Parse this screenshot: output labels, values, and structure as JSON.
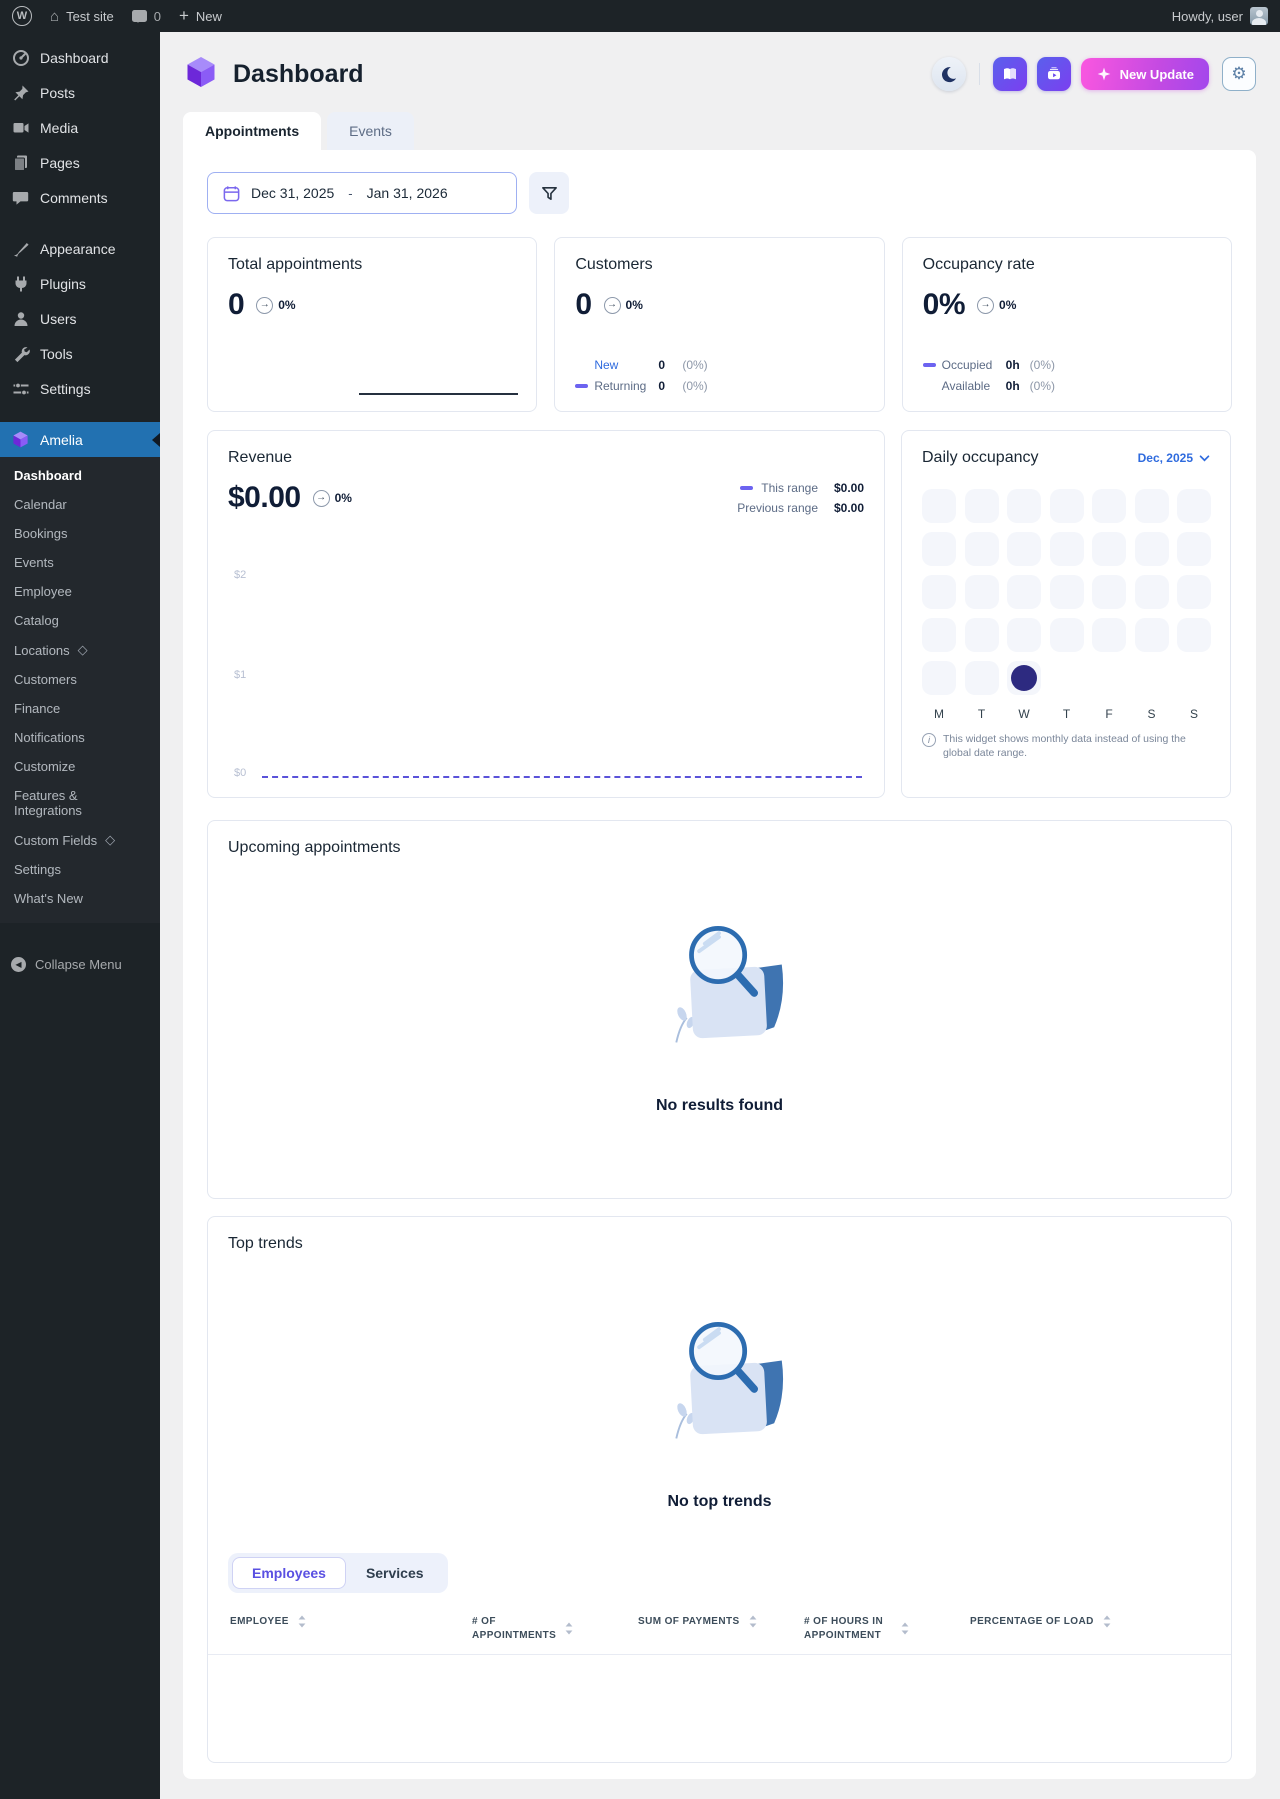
{
  "admin_bar": {
    "site_name": "Test site",
    "comment_count": "0",
    "new_label": "New",
    "howdy": "Howdy, user"
  },
  "sidebar": {
    "items": [
      {
        "label": "Dashboard",
        "icon": "dashboard-icon"
      },
      {
        "label": "Posts",
        "icon": "pushpin-icon"
      },
      {
        "label": "Media",
        "icon": "media-icon"
      },
      {
        "label": "Pages",
        "icon": "pages-icon"
      },
      {
        "label": "Comments",
        "icon": "comment-icon"
      },
      {
        "label": "Appearance",
        "icon": "appearance-icon",
        "gap_before": true
      },
      {
        "label": "Plugins",
        "icon": "plugin-icon"
      },
      {
        "label": "Users",
        "icon": "user-icon"
      },
      {
        "label": "Tools",
        "icon": "tools-icon"
      },
      {
        "label": "Settings",
        "icon": "settings-icon"
      }
    ],
    "amelia": {
      "label": "Amelia",
      "submenu": [
        {
          "label": "Dashboard",
          "active": true
        },
        {
          "label": "Calendar"
        },
        {
          "label": "Bookings"
        },
        {
          "label": "Events"
        },
        {
          "label": "Employee"
        },
        {
          "label": "Catalog"
        },
        {
          "label": "Locations",
          "pro": true
        },
        {
          "label": "Customers"
        },
        {
          "label": "Finance"
        },
        {
          "label": "Notifications"
        },
        {
          "label": "Customize"
        },
        {
          "label": "Features & Integrations"
        },
        {
          "label": "Custom Fields",
          "pro": true
        },
        {
          "label": "Settings"
        },
        {
          "label": "What's New"
        }
      ]
    },
    "collapse_label": "Collapse Menu"
  },
  "header": {
    "title": "Dashboard",
    "new_update_label": "New Update"
  },
  "tabs": [
    {
      "label": "Appointments",
      "active": true
    },
    {
      "label": "Events",
      "active": false
    }
  ],
  "filters": {
    "date_start": "Dec 31, 2025",
    "date_separator": "-",
    "date_end": "Jan 31, 2026"
  },
  "stats": {
    "total_appointments": {
      "title": "Total appointments",
      "value": "0",
      "trend": "0%"
    },
    "customers": {
      "title": "Customers",
      "value": "0",
      "trend": "0%",
      "rows": [
        {
          "label": "New",
          "value": "0",
          "pct": "(0%)",
          "dash": false,
          "link": true
        },
        {
          "label": "Returning",
          "value": "0",
          "pct": "(0%)",
          "dash": true,
          "link": false
        }
      ]
    },
    "occupancy_rate": {
      "title": "Occupancy rate",
      "value": "0%",
      "trend": "0%",
      "rows": [
        {
          "label": "Occupied",
          "value": "0h",
          "pct": "(0%)",
          "dash": true,
          "link": false
        },
        {
          "label": "Available",
          "value": "0h",
          "pct": "(0%)",
          "dash": false,
          "link": false
        }
      ]
    }
  },
  "revenue": {
    "title": "Revenue",
    "value": "$0.00",
    "trend": "0%",
    "legend": [
      {
        "label": "This range",
        "value": "$0.00",
        "dash": true
      },
      {
        "label": "Previous range",
        "value": "$0.00",
        "dash": false
      }
    ],
    "chart_data": {
      "type": "line",
      "x_start": "Dec 31, 2025",
      "x_end": "Jan 31, 2026",
      "yticks": [
        "$0",
        "$1",
        "$2"
      ],
      "ylim": [
        0,
        2
      ],
      "series": [
        {
          "name": "This range",
          "constant_value": 0,
          "total": "$0.00"
        },
        {
          "name": "Previous range",
          "constant_value": 0,
          "total": "$0.00"
        }
      ]
    }
  },
  "daily_occupancy": {
    "title": "Daily occupancy",
    "month_label": "Dec, 2025",
    "weekdays": [
      "M",
      "T",
      "W",
      "T",
      "F",
      "S",
      "S"
    ],
    "days_in_month": 31,
    "highlighted_day": 31,
    "note": "This widget shows monthly data instead of using the global date range."
  },
  "upcoming": {
    "title": "Upcoming appointments",
    "empty_text": "No results found"
  },
  "top_trends": {
    "title": "Top trends",
    "empty_text": "No top trends",
    "toggle": [
      {
        "label": "Employees",
        "active": true
      },
      {
        "label": "Services",
        "active": false
      }
    ],
    "columns": [
      "EMPLOYEE",
      "# OF APPOINTMENTS",
      "SUM OF PAYMENTS",
      "# OF HOURS IN APPOINTMENT",
      "PERCENTAGE OF LOAD"
    ]
  },
  "colors": {
    "accent_purple": "#6c63f0",
    "wp_active_blue": "#2271b1",
    "highlight_day": "#2d2a80",
    "month_link_blue": "#2f6bde",
    "new_update_gradient": [
      "#fa57e0",
      "#a347ec"
    ],
    "icon_button_gradient": [
      "#5a60ec",
      "#7b3ff0"
    ]
  }
}
